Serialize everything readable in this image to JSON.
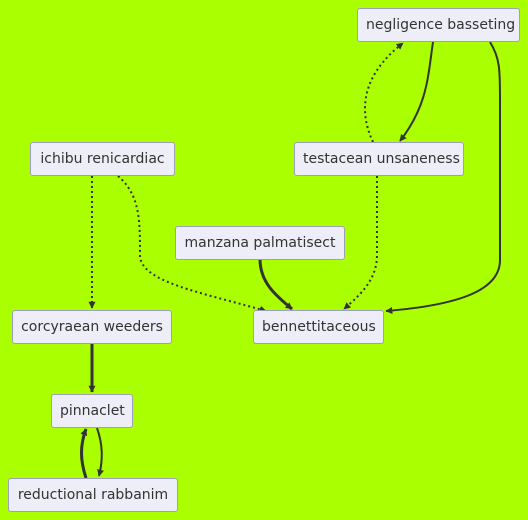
{
  "diagram": {
    "nodes": [
      {
        "id": "negligence",
        "label": "negligence basseting"
      },
      {
        "id": "testacean",
        "label": "testacean unsaneness"
      },
      {
        "id": "ichibu",
        "label": "ichibu renicardiac"
      },
      {
        "id": "manzana",
        "label": "manzana palmatisect"
      },
      {
        "id": "corcyraean",
        "label": "corcyraean weeders"
      },
      {
        "id": "bennett",
        "label": "bennettitaceous"
      },
      {
        "id": "pinnaclet",
        "label": "pinnaclet"
      },
      {
        "id": "reductional",
        "label": "reductional rabbanim"
      }
    ],
    "edges": [
      {
        "from": "negligence",
        "to": "testacean",
        "style": "solid"
      },
      {
        "from": "testacean",
        "to": "negligence",
        "style": "dotted"
      },
      {
        "from": "negligence",
        "to": "bennett",
        "style": "solid"
      },
      {
        "from": "testacean",
        "to": "bennett",
        "style": "dotted"
      },
      {
        "from": "ichibu",
        "to": "corcyraean",
        "style": "dotted"
      },
      {
        "from": "ichibu",
        "to": "bennett",
        "style": "dotted"
      },
      {
        "from": "manzana",
        "to": "bennett",
        "style": "thick"
      },
      {
        "from": "corcyraean",
        "to": "pinnaclet",
        "style": "thick"
      },
      {
        "from": "pinnaclet",
        "to": "reductional",
        "style": "solid"
      },
      {
        "from": "reductional",
        "to": "pinnaclet",
        "style": "thick"
      }
    ]
  }
}
